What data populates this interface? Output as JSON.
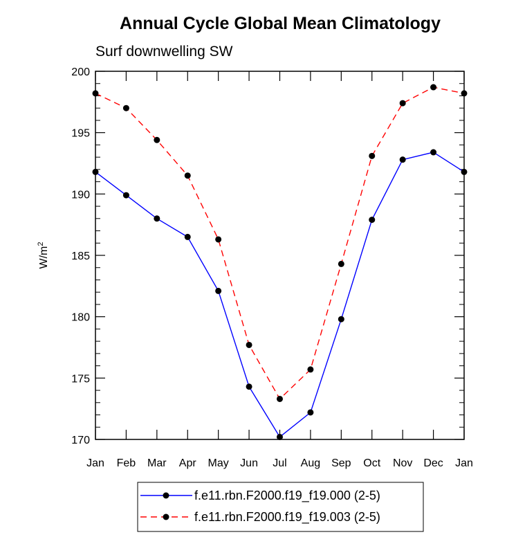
{
  "chart_data": {
    "type": "line",
    "title": "Annual Cycle Global Mean Climatology",
    "subtitle": "Surf downwelling SW",
    "ylabel": "W/m",
    "ylabel_superscript": "2",
    "xlabel": "",
    "categories": [
      "Jan",
      "Feb",
      "Mar",
      "Apr",
      "May",
      "Jun",
      "Jul",
      "Aug",
      "Sep",
      "Oct",
      "Nov",
      "Dec",
      "Jan"
    ],
    "ylim": [
      170,
      200
    ],
    "yticks": [
      170,
      175,
      180,
      185,
      190,
      195,
      200
    ],
    "yticks_minor_step": 1,
    "grid": false,
    "legend_position": "bottom-center",
    "series": [
      {
        "name": "f.e11.rbn.F2000.f19_f19.000 (2-5)",
        "color": "#0000ff",
        "line_style": "solid",
        "marker": "filled-circle",
        "marker_color": "#000000",
        "values": [
          191.8,
          189.9,
          188.0,
          186.5,
          182.1,
          174.3,
          170.2,
          172.2,
          179.8,
          187.9,
          192.8,
          193.4,
          191.8
        ]
      },
      {
        "name": "f.e11.rbn.F2000.f19_f19.003 (2-5)",
        "color": "#ff0000",
        "line_style": "dashed",
        "marker": "filled-circle",
        "marker_color": "#000000",
        "values": [
          198.2,
          197.0,
          194.4,
          191.5,
          186.3,
          177.7,
          173.3,
          175.7,
          184.3,
          193.1,
          197.4,
          198.7,
          198.2
        ]
      }
    ]
  }
}
